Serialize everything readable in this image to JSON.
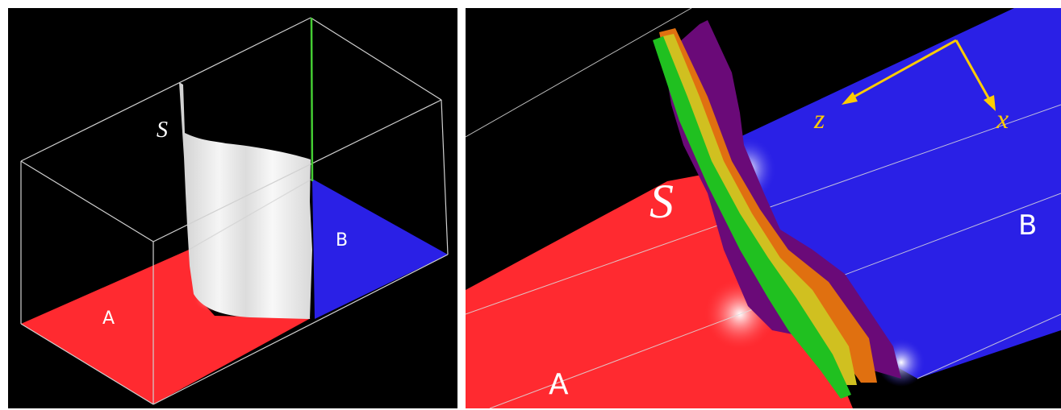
{
  "left_panel": {
    "labels": {
      "a": "A",
      "b": "B",
      "s": "S"
    },
    "colors": {
      "region_a": "#ff2a30",
      "region_b": "#2a20e6",
      "surface": "#f2f2f2",
      "frame": "#d0d0d0"
    }
  },
  "right_panel": {
    "labels": {
      "a": "A",
      "b": "B",
      "s": "S"
    },
    "axes": {
      "z": "z",
      "x": "x",
      "color": "#ffcc00"
    },
    "colors": {
      "region_a": "#ff2a30",
      "region_b": "#2a20e6",
      "surfaces": [
        "#6a0a78",
        "#e07010",
        "#d0c020",
        "#20c020"
      ]
    }
  }
}
